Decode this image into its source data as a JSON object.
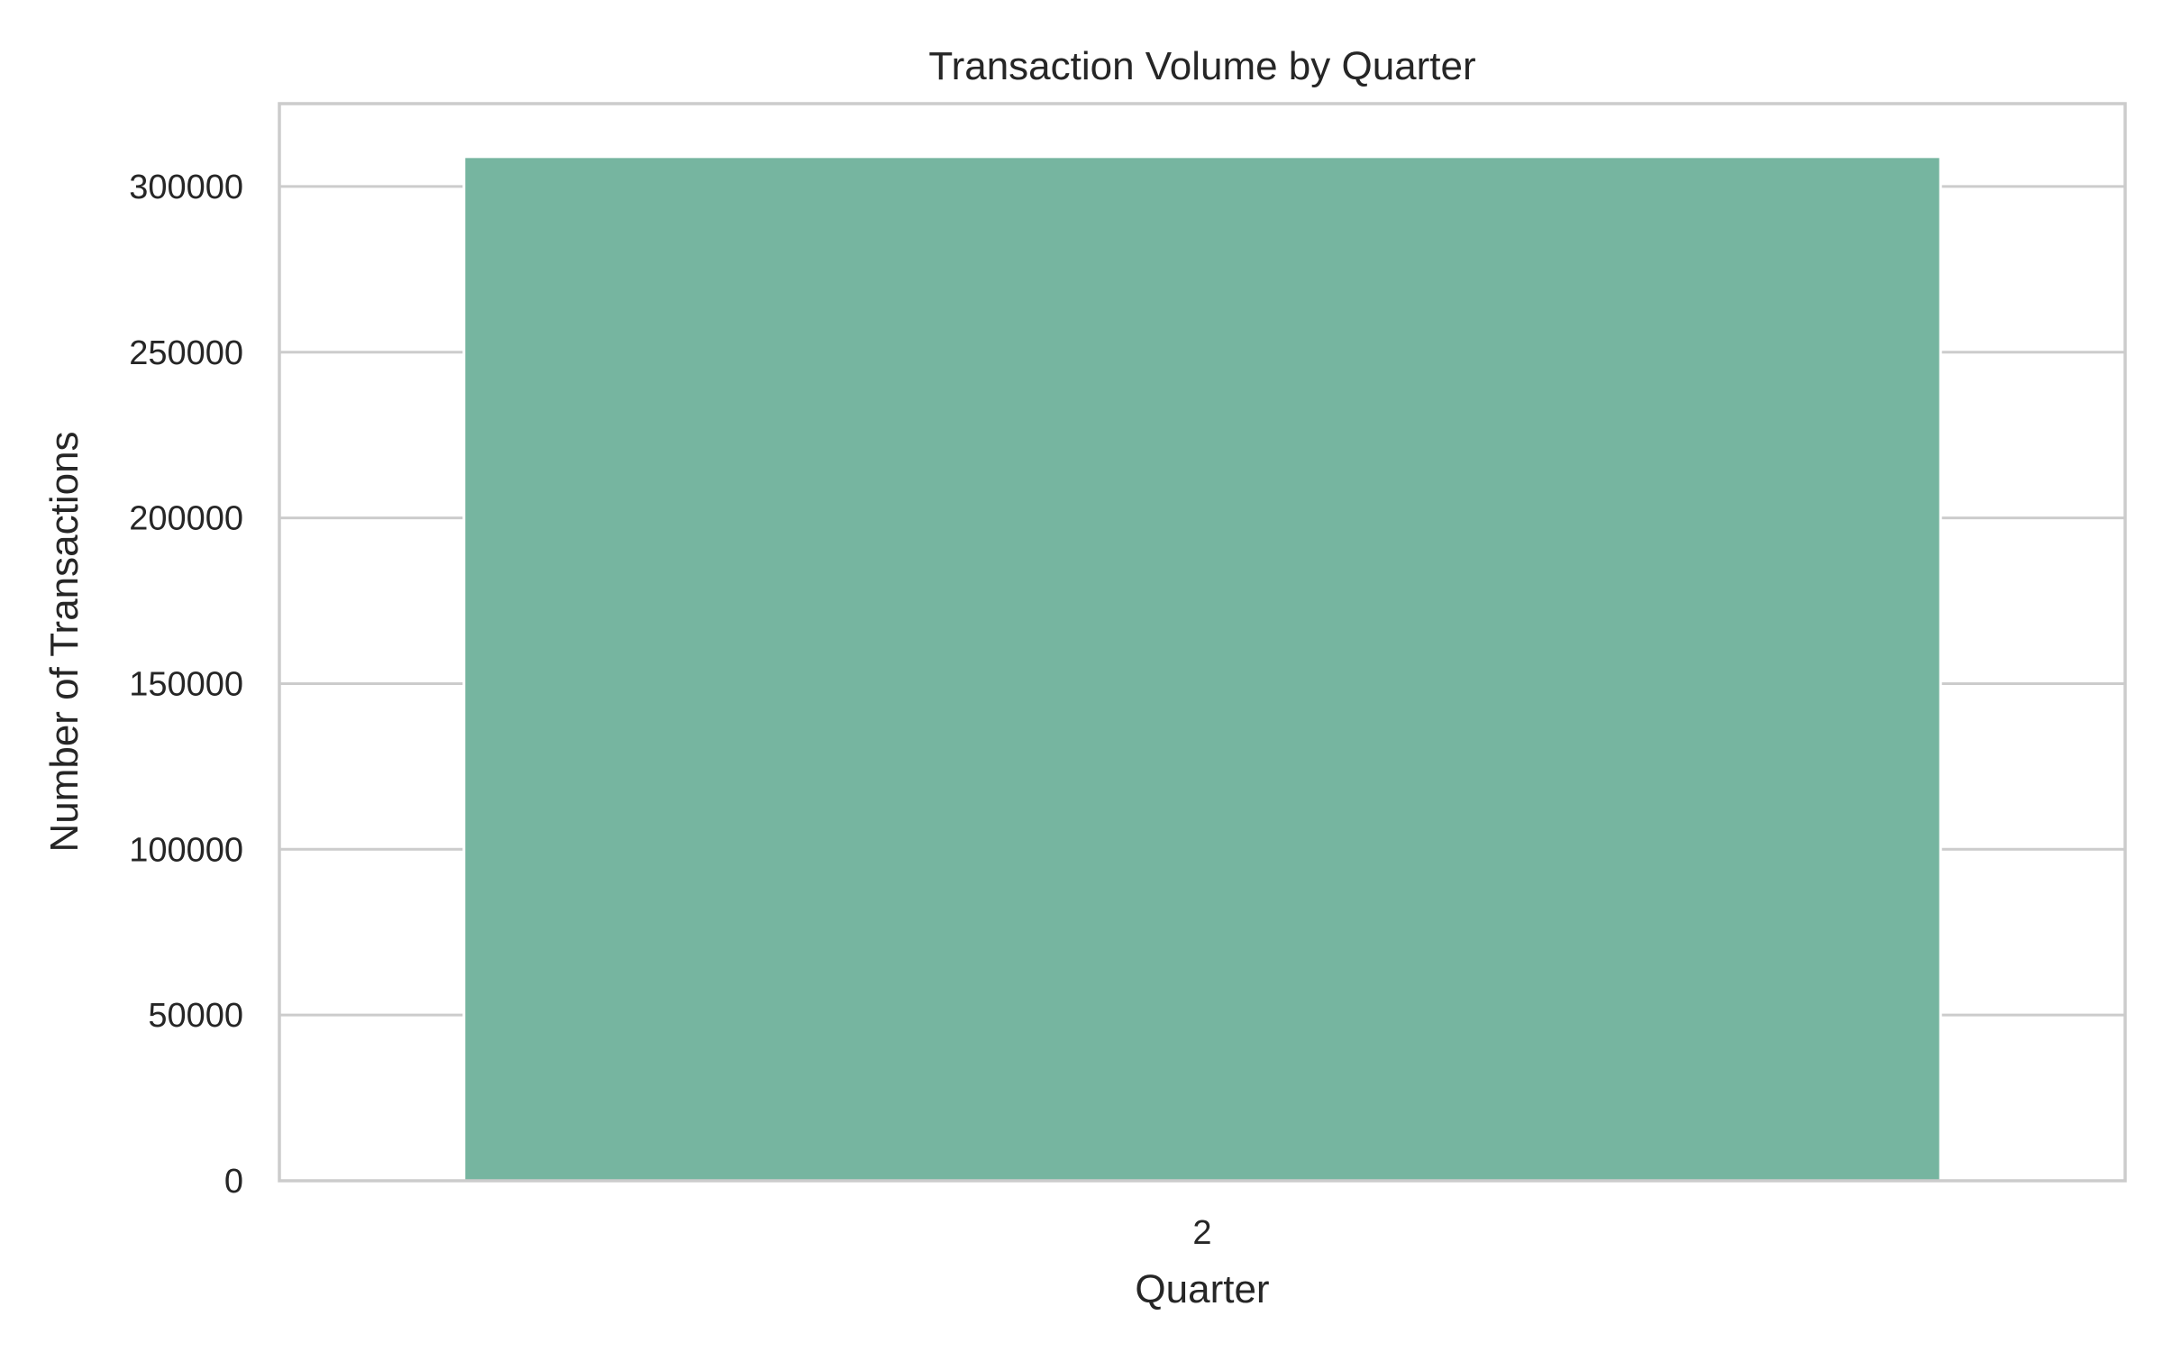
{
  "chart_data": {
    "type": "bar",
    "title": "Transaction Volume by Quarter",
    "xlabel": "Quarter",
    "ylabel": "Number of Transactions",
    "categories": [
      "2"
    ],
    "values": [
      309000
    ],
    "ylim": [
      0,
      325000
    ],
    "yticks": [
      0,
      50000,
      100000,
      150000,
      200000,
      250000,
      300000
    ],
    "grid": true,
    "bar_color": "#76b5a0",
    "grid_color": "#cccccc",
    "text_color": "#262626"
  }
}
